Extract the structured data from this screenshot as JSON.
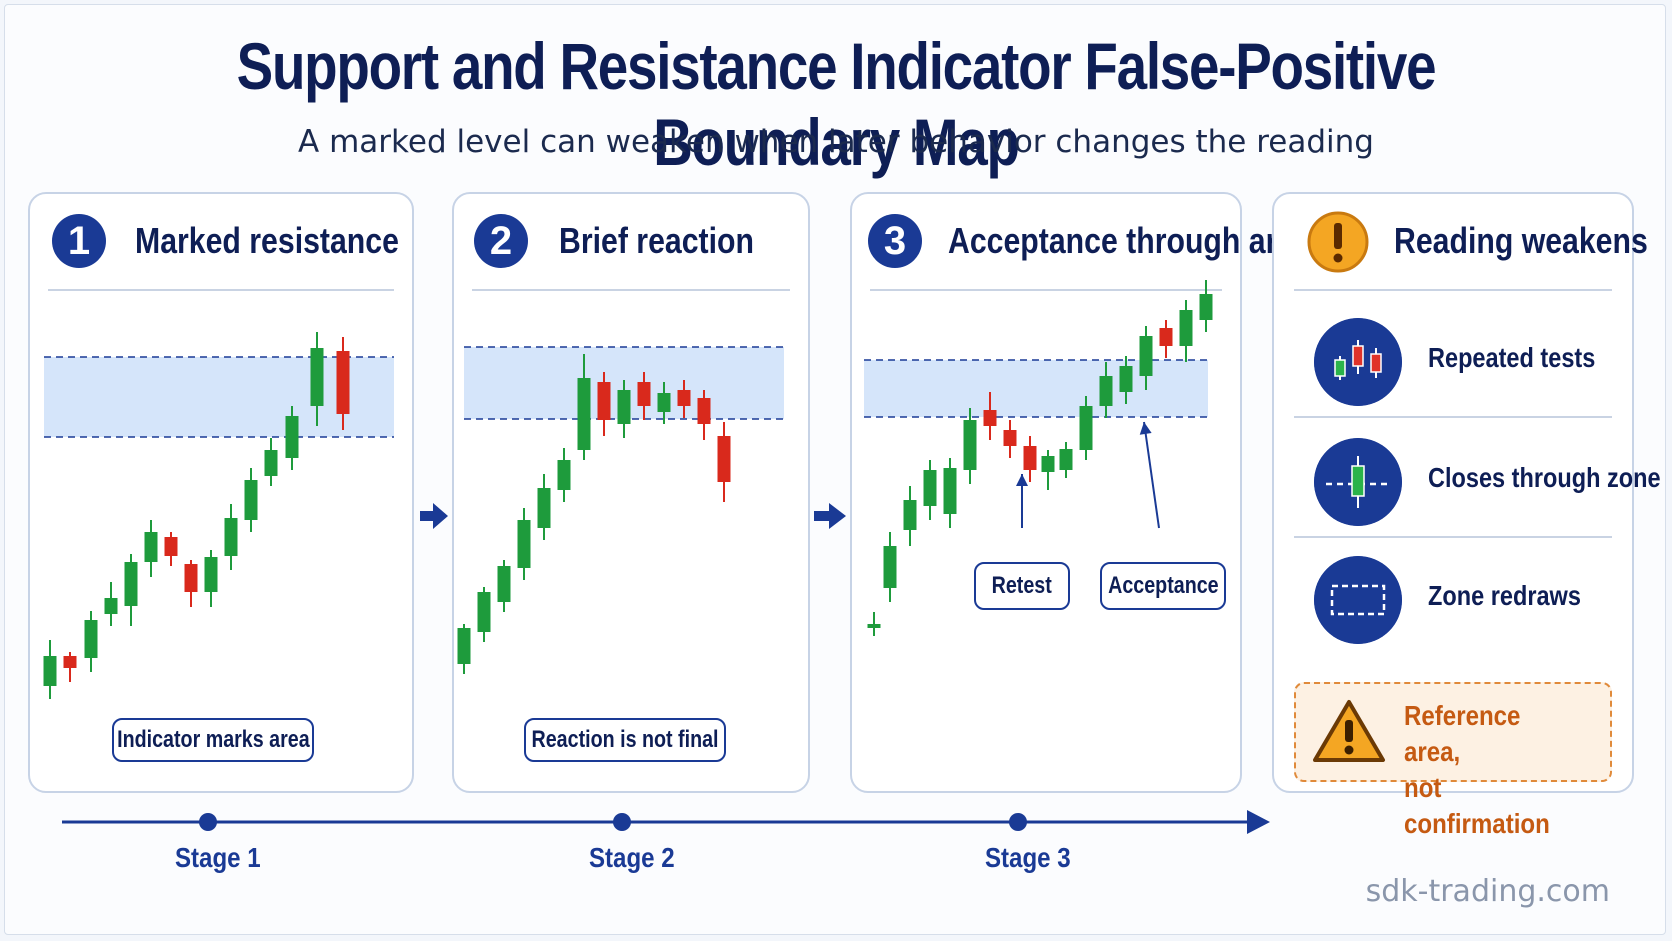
{
  "title": "Support and Resistance Indicator False-Positive Boundary Map",
  "subtitle": "A marked level can weaken when later behavior changes the reading",
  "panels": [
    {
      "number": "1",
      "title": "Marked resistance",
      "callout": "Indicator marks area"
    },
    {
      "number": "2",
      "title": "Brief reaction",
      "callout": "Reaction is not final"
    },
    {
      "number": "3",
      "title": "Acceptance through area",
      "callouts": [
        "Retest",
        "Acceptance"
      ]
    }
  ],
  "sidebar": {
    "title": "Reading weakens",
    "items": [
      {
        "label": "Repeated tests",
        "icon": "candles-icon"
      },
      {
        "label": "Closes through zone",
        "icon": "candle-through-line-icon"
      },
      {
        "label": "Zone redraws",
        "icon": "dashed-box-icon"
      }
    ],
    "warning_line1": "Reference area,",
    "warning_line2": "not confirmation"
  },
  "timeline": {
    "stages": [
      "Stage 1",
      "Stage 2",
      "Stage 3"
    ]
  },
  "brand": "sdk-trading.com",
  "colors": {
    "navy": "#1a3a95",
    "bull": "#1e9b3c",
    "bear": "#d9291c",
    "zone": "#d5e5fa",
    "warning": "#f2a21e"
  }
}
